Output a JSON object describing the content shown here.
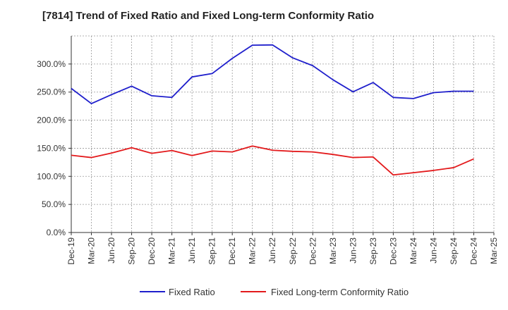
{
  "chart_data": {
    "type": "line",
    "title": "[7814]  Trend of Fixed Ratio and Fixed Long-term Conformity Ratio",
    "xlabel": "",
    "ylabel": "",
    "x": [
      "Dec-19",
      "Mar-20",
      "Jun-20",
      "Sep-20",
      "Dec-20",
      "Mar-21",
      "Jun-21",
      "Sep-21",
      "Dec-21",
      "Mar-22",
      "Jun-22",
      "Sep-22",
      "Dec-22",
      "Mar-23",
      "Jun-23",
      "Sep-23",
      "Dec-23",
      "Mar-24",
      "Jun-24",
      "Sep-24",
      "Dec-24",
      "Mar-25"
    ],
    "y_ticks": [
      "0.0%",
      "50.0%",
      "100.0%",
      "150.0%",
      "200.0%",
      "250.0%",
      "300.0%"
    ],
    "ylim": [
      0,
      350
    ],
    "grid": true,
    "legend_position": "bottom",
    "series": [
      {
        "name": "Fixed Ratio",
        "color": "#1f1fcc",
        "values": [
          256.5,
          229.5,
          245.5,
          260.5,
          243.5,
          240.5,
          277.0,
          283.0,
          310.0,
          333.5,
          334.0,
          311.0,
          297.0,
          272.0,
          250.5,
          267.0,
          240.5,
          238.5,
          249.0,
          251.5,
          251.5,
          null
        ]
      },
      {
        "name": "Fixed Long-term Conformity Ratio",
        "color": "#e31a1c",
        "values": [
          137.5,
          133.5,
          141.5,
          151.0,
          141.0,
          146.0,
          137.0,
          145.0,
          143.5,
          154.0,
          146.5,
          144.5,
          143.5,
          139.0,
          133.5,
          134.5,
          102.5,
          106.5,
          110.5,
          115.5,
          131.0,
          null
        ]
      }
    ]
  }
}
